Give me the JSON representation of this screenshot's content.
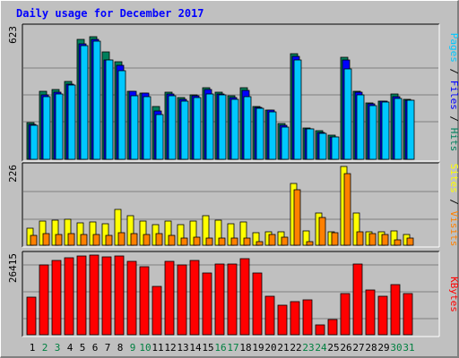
{
  "title": "Daily usage for December 2017",
  "colors": {
    "hits": "#00805c",
    "files": "#0000ff",
    "pages": "#00c8ff",
    "sites": "#ffff00",
    "visits": "#ff8000",
    "kbytes": "#ff0000",
    "title": "#0000ff",
    "weekday_label": "#000000",
    "weekend_label": "#008040",
    "panel_bg": "#c0c0c0"
  },
  "chart_data": [
    {
      "type": "bar",
      "panel": "hits_files_pages",
      "ymax_label": "623",
      "ymax": 623,
      "legend": [
        "Pages",
        "Files",
        "Hits"
      ],
      "categories": [
        "1",
        "2",
        "3",
        "4",
        "5",
        "6",
        "7",
        "8",
        "9",
        "10",
        "11",
        "12",
        "13",
        "14",
        "15",
        "16",
        "17",
        "18",
        "19",
        "20",
        "21",
        "22",
        "23",
        "24",
        "25",
        "26",
        "27",
        "28",
        "29",
        "30",
        "31"
      ],
      "series": [
        {
          "name": "Hits",
          "values": [
            172,
            321,
            331,
            370,
            570,
            581,
            510,
            462,
            324,
            315,
            248,
            318,
            292,
            305,
            340,
            316,
            299,
            341,
            248,
            233,
            170,
            500,
            150,
            135,
            115,
            482,
            322,
            268,
            277,
            308,
            285
          ]
        },
        {
          "name": "Files",
          "values": [
            165,
            306,
            318,
            357,
            548,
            570,
            472,
            445,
            320,
            313,
            229,
            310,
            286,
            303,
            329,
            310,
            293,
            328,
            245,
            232,
            163,
            488,
            146,
            128,
            108,
            472,
            317,
            263,
            274,
            297,
            281
          ]
        },
        {
          "name": "Pages",
          "values": [
            159,
            296,
            311,
            353,
            538,
            560,
            472,
            421,
            300,
            296,
            210,
            303,
            276,
            294,
            311,
            307,
            284,
            296,
            241,
            224,
            153,
            472,
            146,
            124,
            107,
            429,
            305,
            255,
            271,
            290,
            278
          ]
        }
      ]
    },
    {
      "type": "bar",
      "panel": "sites_visits",
      "ymax_label": "226",
      "ymax": 226,
      "legend": [
        "Sites",
        "Visits"
      ],
      "categories": [
        "1",
        "2",
        "3",
        "4",
        "5",
        "6",
        "7",
        "8",
        "9",
        "10",
        "11",
        "12",
        "13",
        "14",
        "15",
        "16",
        "17",
        "18",
        "19",
        "20",
        "21",
        "22",
        "23",
        "24",
        "25",
        "26",
        "27",
        "28",
        "29",
        "30",
        "31"
      ],
      "series": [
        {
          "name": "Sites",
          "values": [
            48,
            69,
            73,
            74,
            63,
            67,
            62,
            102,
            86,
            70,
            58,
            70,
            60,
            70,
            84,
            71,
            62,
            66,
            36,
            39,
            38,
            177,
            41,
            93,
            38,
            226,
            92,
            39,
            38,
            40,
            32
          ]
        },
        {
          "name": "Visits",
          "values": [
            29,
            33,
            31,
            33,
            30,
            32,
            27,
            36,
            33,
            32,
            33,
            27,
            21,
            23,
            20,
            21,
            21,
            20,
            9,
            30,
            22,
            158,
            10,
            80,
            37,
            205,
            38,
            33,
            30,
            16,
            20
          ]
        }
      ]
    },
    {
      "type": "bar",
      "panel": "kbytes",
      "ymax_label": "26415",
      "ymax": 26415,
      "legend": [
        "KBytes"
      ],
      "categories": [
        "1",
        "2",
        "3",
        "4",
        "5",
        "6",
        "7",
        "8",
        "9",
        "10",
        "11",
        "12",
        "13",
        "14",
        "15",
        "16",
        "17",
        "18",
        "19",
        "20",
        "21",
        "22",
        "23",
        "24",
        "25",
        "26",
        "27",
        "28",
        "29",
        "30",
        "31"
      ],
      "series": [
        {
          "name": "KBytes",
          "values": [
            12500,
            23100,
            24700,
            25600,
            26200,
            26415,
            25900,
            26100,
            24400,
            22600,
            16100,
            24400,
            23200,
            24700,
            20600,
            23300,
            23300,
            25100,
            20400,
            12900,
            9900,
            11000,
            11600,
            3300,
            5000,
            13700,
            23300,
            14700,
            12900,
            16700,
            13600
          ]
        }
      ]
    }
  ]
}
